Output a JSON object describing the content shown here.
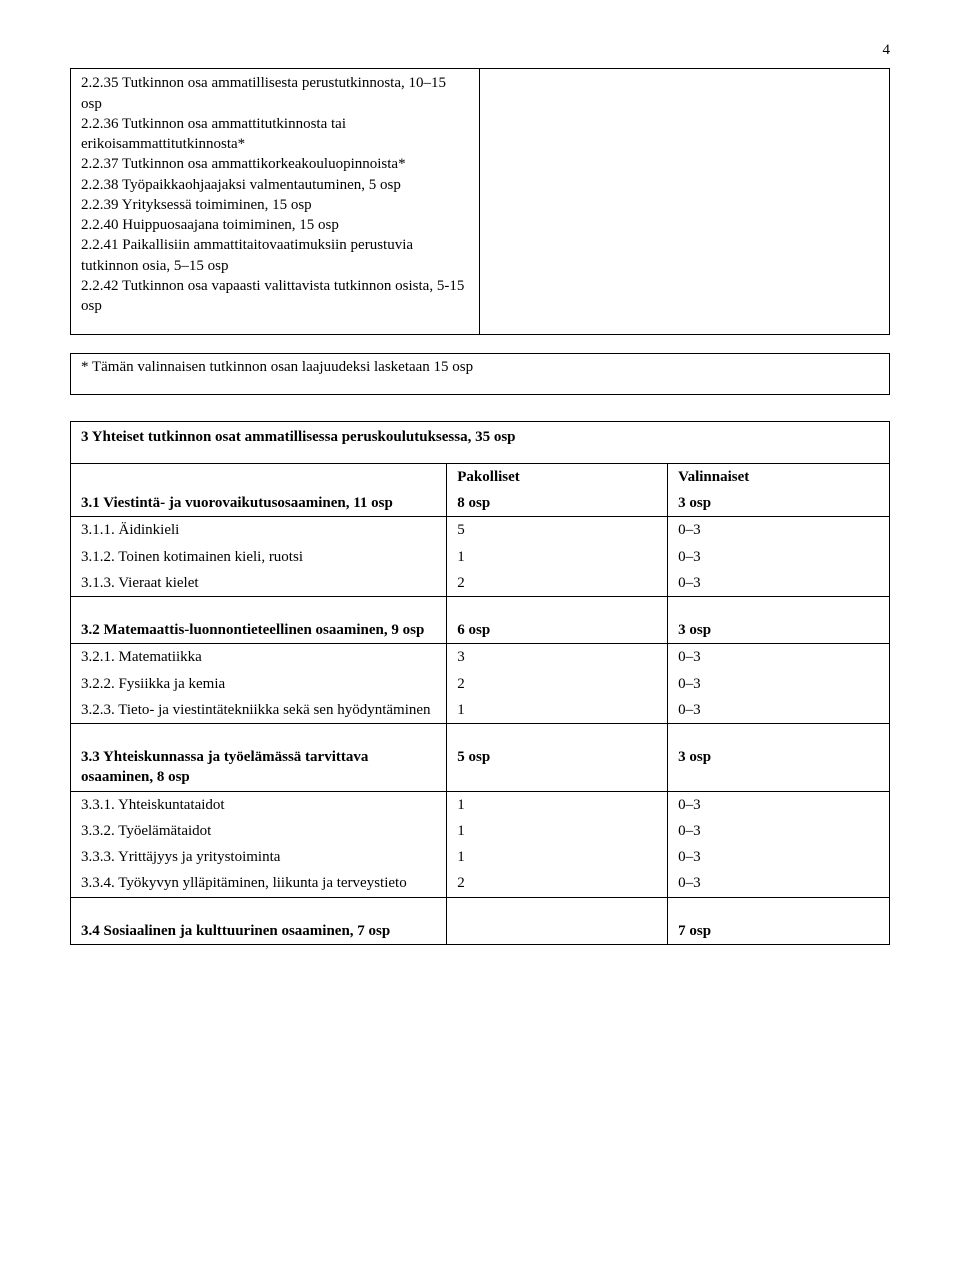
{
  "page_number": "4",
  "section_list": {
    "items": [
      "2.2.35 Tutkinnon osa ammatillisesta perustutkinnosta, 10–15 osp",
      "2.2.36 Tutkinnon osa ammattitutkinnosta tai erikoisammattitutkinnosta*",
      "2.2.37 Tutkinnon osa ammattikorkeakouluopinnoista*",
      "2.2.38 Työpaikkaohjaajaksi valmentautuminen, 5 osp",
      "2.2.39 Yrityksessä toimiminen, 15 osp",
      "2.2.40 Huippuosaajana toimiminen, 15 osp",
      "2.2.41 Paikallisiin ammattitaitovaatimuksiin perustuvia tutkinnon osia, 5–15 osp",
      "2.2.42 Tutkinnon osa vapaasti valittavista tutkinnon osista, 5-15 osp"
    ]
  },
  "footnote": "* Tämän valinnaisen tutkinnon osan laajuudeksi lasketaan 15 osp",
  "table": {
    "heading": "3 Yhteiset tutkinnon osat ammatillisessa peruskoulutuksessa, 35 osp",
    "header": {
      "c2": "Pakolliset",
      "c3": "Valinnaiset"
    },
    "g1_head": {
      "c1": "3.1 Viestintä- ja vuorovaikutusosaaminen, 11 osp",
      "c2": "8 osp",
      "c3": "3 osp"
    },
    "g1_rows": [
      {
        "c1": "3.1.1. Äidinkieli",
        "c2": "5",
        "c3": "0–3"
      },
      {
        "c1": "3.1.2. Toinen kotimainen kieli, ruotsi",
        "c2": "1",
        "c3": "0–3"
      },
      {
        "c1": "3.1.3. Vieraat kielet",
        "c2": "2",
        "c3": "0–3"
      }
    ],
    "g2_head": {
      "c1": "3.2 Matemaattis-luonnontieteellinen osaaminen, 9 osp",
      "c2": "6 osp",
      "c3": "3 osp"
    },
    "g2_rows": [
      {
        "c1": "3.2.1. Matematiikka",
        "c2": "3",
        "c3": "0–3"
      },
      {
        "c1": "3.2.2. Fysiikka ja kemia",
        "c2": "2",
        "c3": "0–3"
      },
      {
        "c1": "3.2.3. Tieto- ja viestintätekniikka sekä sen hyödyntäminen",
        "c2": "1",
        "c3": "0–3"
      }
    ],
    "g3_head": {
      "c1": "3.3 Yhteiskunnassa ja työelämässä tarvittava osaaminen, 8 osp",
      "c2": "5 osp",
      "c3": "3 osp"
    },
    "g3_rows": [
      {
        "c1": "3.3.1. Yhteiskuntataidot",
        "c2": "1",
        "c3": "0–3"
      },
      {
        "c1": "3.3.2. Työelämätaidot",
        "c2": "1",
        "c3": "0–3"
      },
      {
        "c1": "3.3.3. Yrittäjyys ja yritystoiminta",
        "c2": "1",
        "c3": "0–3"
      },
      {
        "c1": "3.3.4. Työkyvyn ylläpitäminen, liikunta ja terveystieto",
        "c2": "2",
        "c3": "0–3"
      }
    ],
    "g4_head": {
      "c1": "3.4 Sosiaalinen ja kulttuurinen osaaminen, 7 osp",
      "c2": "",
      "c3": "7 osp"
    }
  }
}
